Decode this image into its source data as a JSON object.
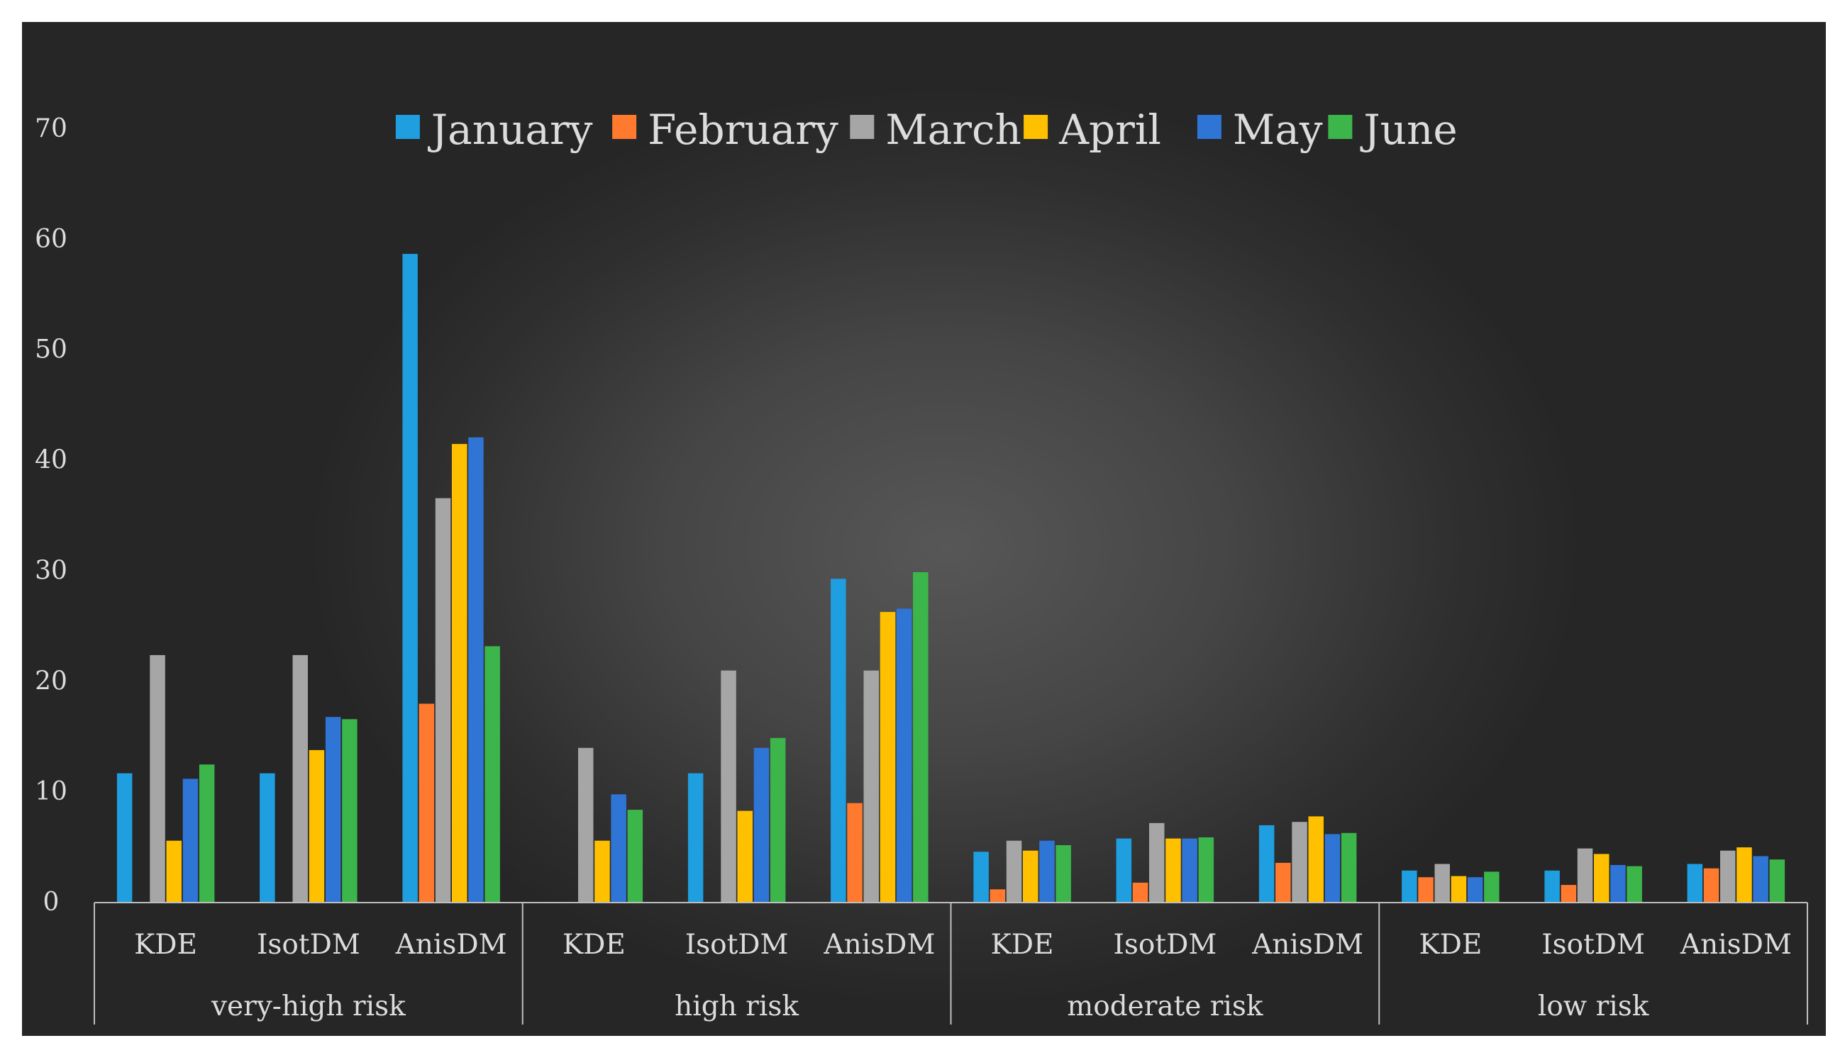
{
  "chart_data": {
    "type": "bar",
    "title": "",
    "xlabel": "",
    "ylabel": "",
    "ylim": [
      0,
      70
    ],
    "yticks": [
      0,
      10,
      20,
      30,
      40,
      50,
      60,
      70
    ],
    "grid": false,
    "legend_position": "top",
    "groups": [
      {
        "label": "very-high risk",
        "methods": [
          "KDE",
          "IsotDM",
          "AnisDM"
        ]
      },
      {
        "label": "high risk",
        "methods": [
          "KDE",
          "IsotDM",
          "AnisDM"
        ]
      },
      {
        "label": "moderate risk",
        "methods": [
          "KDE",
          "IsotDM",
          "AnisDM"
        ]
      },
      {
        "label": "low risk",
        "methods": [
          "KDE",
          "IsotDM",
          "AnisDM"
        ]
      }
    ],
    "categories": [
      "very-high risk KDE",
      "very-high risk IsotDM",
      "very-high risk AnisDM",
      "high risk KDE",
      "high risk IsotDM",
      "high risk AnisDM",
      "moderate risk KDE",
      "moderate risk IsotDM",
      "moderate risk AnisDM",
      "low risk KDE",
      "low risk IsotDM",
      "low risk AnisDM"
    ],
    "series": [
      {
        "name": "January",
        "color": "#1f9ee0",
        "values": [
          11.7,
          11.7,
          58.7,
          0,
          11.7,
          29.3,
          4.6,
          5.8,
          7.0,
          2.9,
          2.9,
          3.5
        ]
      },
      {
        "name": "February",
        "color": "#ff7a2e",
        "values": [
          0,
          0,
          18.0,
          0,
          0,
          9.0,
          1.2,
          1.8,
          3.6,
          2.3,
          1.6,
          3.1
        ]
      },
      {
        "name": "March",
        "color": "#a6a6a6",
        "values": [
          22.4,
          22.4,
          36.6,
          14.0,
          21.0,
          21.0,
          5.6,
          7.2,
          7.3,
          3.5,
          4.9,
          4.7
        ]
      },
      {
        "name": "April",
        "color": "#ffc000",
        "values": [
          5.6,
          13.8,
          41.5,
          5.6,
          8.3,
          26.3,
          4.7,
          5.8,
          7.8,
          2.4,
          4.4,
          5.0
        ]
      },
      {
        "name": "May",
        "color": "#2e75d6",
        "values": [
          11.2,
          16.8,
          42.1,
          9.8,
          14.0,
          26.6,
          5.6,
          5.8,
          6.2,
          2.3,
          3.4,
          4.2
        ]
      },
      {
        "name": "June",
        "color": "#3cb54a",
        "values": [
          12.5,
          16.6,
          23.2,
          8.4,
          14.9,
          29.9,
          5.2,
          5.9,
          6.3,
          2.8,
          3.3,
          3.9
        ]
      }
    ]
  }
}
